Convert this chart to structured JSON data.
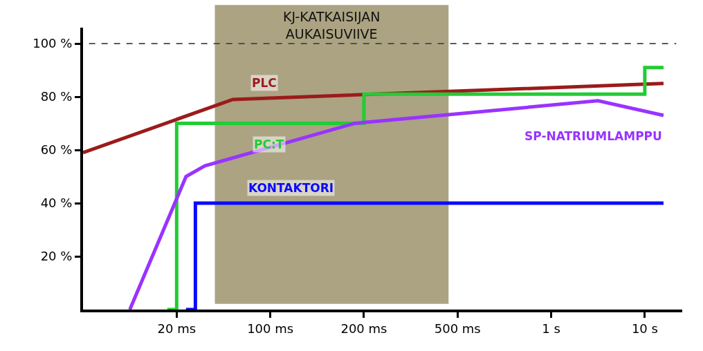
{
  "chart_data": {
    "type": "line",
    "categories": [
      null,
      null,
      null,
      null,
      null,
      null,
      null,
      null,
      null,
      null,
      "20 ms",
      null,
      null,
      null,
      null,
      null,
      null,
      null,
      null,
      null,
      "100 ms",
      null,
      null,
      null,
      null,
      null,
      null,
      null,
      null,
      null,
      "200 ms",
      null,
      null,
      null,
      null,
      null,
      null,
      null,
      null,
      null,
      "500 ms",
      null,
      null,
      null,
      null,
      null,
      null,
      null,
      null,
      null,
      "1 s",
      null,
      null,
      null,
      null,
      null,
      null,
      null,
      null,
      null,
      "10 s",
      null,
      null,
      null,
      null
    ],
    "ylim": [
      0,
      106
    ],
    "yticks": [
      {
        "value": 20,
        "label": "20 %"
      },
      {
        "value": 40,
        "label": "40 %"
      },
      {
        "value": 60,
        "label": "60 %"
      },
      {
        "value": 80,
        "label": "80 %"
      },
      {
        "value": 100,
        "label": "100 %"
      }
    ],
    "grid": false,
    "legend": false,
    "marker": "none",
    "line_style": "solid",
    "series": [
      {
        "name": "PLC",
        "color": "#9b1b1b",
        "values": [
          59,
          null,
          null,
          null,
          null,
          null,
          null,
          null,
          null,
          null,
          null,
          null,
          null,
          null,
          null,
          null,
          79,
          null,
          null,
          null,
          null,
          null,
          null,
          null,
          null,
          null,
          null,
          null,
          null,
          null,
          null,
          null,
          null,
          null,
          null,
          null,
          null,
          null,
          null,
          null,
          null,
          null,
          null,
          null,
          null,
          null,
          null,
          null,
          null,
          null,
          null,
          null,
          null,
          null,
          null,
          null,
          null,
          null,
          null,
          null,
          null,
          null,
          85,
          null,
          null
        ]
      },
      {
        "name": "PC:T",
        "type": "step",
        "color": "#22cc33",
        "values": [
          null,
          null,
          null,
          null,
          null,
          null,
          null,
          null,
          null,
          0,
          70,
          null,
          null,
          null,
          null,
          null,
          null,
          null,
          null,
          null,
          null,
          null,
          null,
          null,
          null,
          null,
          null,
          null,
          null,
          null,
          81,
          null,
          null,
          null,
          null,
          null,
          null,
          null,
          null,
          null,
          null,
          null,
          null,
          null,
          null,
          null,
          null,
          null,
          null,
          null,
          null,
          null,
          null,
          null,
          null,
          null,
          null,
          null,
          null,
          null,
          91,
          null,
          91,
          null,
          null
        ]
      },
      {
        "name": "KONTAKTORI",
        "type": "step",
        "color": "#0a0aff",
        "values": [
          null,
          null,
          null,
          null,
          null,
          null,
          null,
          null,
          null,
          null,
          null,
          0,
          40,
          null,
          null,
          null,
          null,
          null,
          null,
          null,
          null,
          null,
          null,
          null,
          null,
          null,
          null,
          null,
          null,
          null,
          null,
          null,
          null,
          null,
          null,
          null,
          null,
          null,
          null,
          null,
          null,
          null,
          null,
          null,
          null,
          null,
          null,
          null,
          null,
          null,
          null,
          null,
          null,
          null,
          null,
          null,
          null,
          null,
          null,
          null,
          null,
          null,
          40,
          null,
          null
        ]
      },
      {
        "name": "SP-NATRIUMLAMPPU",
        "color": "#9933ff",
        "values": [
          null,
          null,
          null,
          null,
          null,
          0,
          null,
          null,
          null,
          null,
          null,
          50,
          null,
          54,
          null,
          null,
          null,
          null,
          null,
          null,
          null,
          null,
          null,
          null,
          null,
          null,
          null,
          null,
          null,
          70,
          null,
          null,
          null,
          null,
          null,
          null,
          null,
          null,
          null,
          null,
          null,
          null,
          null,
          null,
          null,
          null,
          null,
          null,
          null,
          null,
          null,
          null,
          null,
          null,
          null,
          78.5,
          null,
          null,
          null,
          null,
          null,
          null,
          73,
          null,
          null
        ]
      }
    ],
    "ref_lines": [
      {
        "axis": "y",
        "value": 100,
        "color": "#444444",
        "line_style": "dashed"
      }
    ],
    "annotations": [
      "KJ-KATKAISIJAN\nAUKAISUVIIVE"
    ]
  }
}
